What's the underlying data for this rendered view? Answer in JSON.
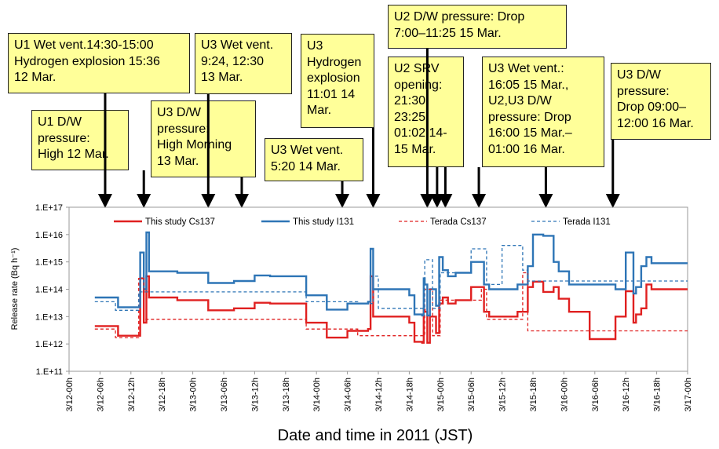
{
  "annotations": [
    {
      "text": "U1 Wet vent.14:30-15:00\nHydrogen explosion 15:36\n12 Mar."
    },
    {
      "text": "U1 D/W\npressure:\nHigh 12 Mar."
    },
    {
      "text": "U3 Wet vent.\n9:24, 12:30\n13 Mar."
    },
    {
      "text": "U3 D/W\npressure:\nHigh Morning\n13 Mar."
    },
    {
      "text": "U3 Wet vent.\n5:20 14 Mar."
    },
    {
      "text": "U3\nHydrogen\nexplosion\n11:01 14\nMar."
    },
    {
      "text": "U2 D/W pressure: Drop\n7:00–11:25 15 Mar."
    },
    {
      "text": "U2 SRV\nopening:\n21:30,\n23:25,\n01:02 14-\n15 Mar."
    },
    {
      "text": "U3 Wet vent.:\n16:05 15 Mar.,\nU2,U3 D/W\npressure: Drop\n16:00 15 Mar.–\n01:00 16 Mar."
    },
    {
      "text": "U3 D/W\npressure:\nDrop 09:00–\n12:00 16 Mar."
    }
  ],
  "chart_data": {
    "type": "line",
    "xlabel": "Date and time in 2011 (JST)",
    "ylabel": "Release rate (Bq h⁻¹)",
    "y_scale": "log",
    "ylim": [
      "1.E+11",
      "1.E+17"
    ],
    "yticks": [
      "1.E+11",
      "1.E+12",
      "1.E+13",
      "1.E+14",
      "1.E+15",
      "1.E+16",
      "1.E+17"
    ],
    "xlim_hours": [
      0,
      120
    ],
    "xticks": [
      "3/12-00h",
      "3/12-06h",
      "3/12-12h",
      "3/12-18h",
      "3/13-00h",
      "3/13-06h",
      "3/13-12h",
      "3/13-18h",
      "3/14-00h",
      "3/14-06h",
      "3/14-12h",
      "3/14-18h",
      "3/15-00h",
      "3/15-06h",
      "3/15-12h",
      "3/15-18h",
      "3/16-00h",
      "3/16-06h",
      "3/16-12h",
      "3/16-18h",
      "3/17-00h"
    ],
    "legend_position": "top",
    "arrow_times": [
      "3/12-07h",
      "3/12-14.5h",
      "3/13-03h",
      "3/13-09.5h",
      "3/14-05h",
      "3/14-11h",
      "3/14-21.5h",
      "3/14-23.4h",
      "3/15-01h",
      "3/15-07.5h",
      "3/15-20.5h",
      "3/16-09.5h"
    ],
    "series": [
      {
        "name": "This study Cs137",
        "color": "#e02020",
        "dash": false,
        "points": [
          [
            5,
            4500000000000.0
          ],
          [
            9.5,
            2000000000000.0
          ],
          [
            13.8,
            250000000000000.0
          ],
          [
            14.5,
            6000000000000.0
          ],
          [
            15,
            300000000000000.0
          ],
          [
            15.5,
            50000000000000.0
          ],
          [
            21,
            40000000000000.0
          ],
          [
            27,
            17000000000000.0
          ],
          [
            32,
            20000000000000.0
          ],
          [
            36,
            32000000000000.0
          ],
          [
            39,
            30000000000000.0
          ],
          [
            46,
            6000000000000.0
          ],
          [
            50,
            1700000000000.0
          ],
          [
            54,
            3000000000000.0
          ],
          [
            58,
            3500000000000.0
          ],
          [
            58.5,
            300000000000000.0
          ],
          [
            59,
            10000000000000.0
          ],
          [
            66,
            6000000000000.0
          ],
          [
            67,
            1200000000000.0
          ],
          [
            68.5,
            1100000000000.0
          ],
          [
            68.8,
            18000000000000.0
          ],
          [
            69,
            15000000000000.0
          ],
          [
            69.5,
            1100000000000.0
          ],
          [
            70,
            10000000000000.0
          ],
          [
            71.2,
            2500000000000.0
          ],
          [
            71.8,
            30000000000000.0
          ],
          [
            72.5,
            50000000000000.0
          ],
          [
            73.5,
            30000000000000.0
          ],
          [
            75,
            40000000000000.0
          ],
          [
            78,
            120000000000000.0
          ],
          [
            80.5,
            15000000000000.0
          ],
          [
            81.5,
            10000000000000.0
          ],
          [
            87,
            15000000000000.0
          ],
          [
            89,
            120000000000000.0
          ],
          [
            90,
            190000000000000.0
          ],
          [
            92,
            80000000000000.0
          ],
          [
            94,
            120000000000000.0
          ],
          [
            95,
            45000000000000.0
          ],
          [
            97,
            15000000000000.0
          ],
          [
            101,
            1500000000000.0
          ],
          [
            106,
            10000000000000.0
          ],
          [
            108,
            85000000000000.0
          ],
          [
            109.5,
            6000000000000.0
          ],
          [
            110,
            12000000000000.0
          ],
          [
            111,
            20000000000000.0
          ],
          [
            112,
            150000000000000.0
          ],
          [
            113,
            100000000000000.0
          ],
          [
            120,
            100000000000000.0
          ]
        ]
      },
      {
        "name": "This study I131",
        "color": "#2e75b6",
        "dash": false,
        "points": [
          [
            5,
            50000000000000.0
          ],
          [
            9.5,
            22000000000000.0
          ],
          [
            13.8,
            2200000000000000.0
          ],
          [
            14.5,
            100000000000000.0
          ],
          [
            15,
            1.2e+16
          ],
          [
            15.5,
            450000000000000.0
          ],
          [
            21,
            400000000000000.0
          ],
          [
            27,
            170000000000000.0
          ],
          [
            32,
            200000000000000.0
          ],
          [
            36,
            320000000000000.0
          ],
          [
            39,
            300000000000000.0
          ],
          [
            46,
            60000000000000.0
          ],
          [
            50,
            18000000000000.0
          ],
          [
            54,
            30000000000000.0
          ],
          [
            58,
            35000000000000.0
          ],
          [
            58.5,
            3000000000000000.0
          ],
          [
            59,
            100000000000000.0
          ],
          [
            66,
            60000000000000.0
          ],
          [
            67,
            12000000000000.0
          ],
          [
            68.5,
            11000000000000.0
          ],
          [
            68.8,
            250000000000000.0
          ],
          [
            69,
            150000000000000.0
          ],
          [
            69.5,
            11000000000000.0
          ],
          [
            70,
            100000000000000.0
          ],
          [
            71.2,
            25000000000000.0
          ],
          [
            71.8,
            1500000000000000.0
          ],
          [
            72.5,
            500000000000000.0
          ],
          [
            73.5,
            300000000000000.0
          ],
          [
            75,
            400000000000000.0
          ],
          [
            78,
            1000000000000000.0
          ],
          [
            80.5,
            150000000000000.0
          ],
          [
            81.5,
            100000000000000.0
          ],
          [
            87,
            150000000000000.0
          ],
          [
            89,
            700000000000000.0
          ],
          [
            90,
            1e+16
          ],
          [
            92,
            9000000000000000.0
          ],
          [
            94,
            1000000000000000.0
          ],
          [
            95,
            450000000000000.0
          ],
          [
            97,
            150000000000000.0
          ],
          [
            101,
            150000000000000.0
          ],
          [
            106,
            100000000000000.0
          ],
          [
            108,
            2200000000000000.0
          ],
          [
            109.5,
            70000000000000.0
          ],
          [
            110,
            120000000000000.0
          ],
          [
            111,
            700000000000000.0
          ],
          [
            112,
            1500000000000000.0
          ],
          [
            113,
            900000000000000.0
          ],
          [
            120,
            900000000000000.0
          ]
        ]
      },
      {
        "name": "Terada Cs137",
        "color": "#e02020",
        "dash": true,
        "points": [
          [
            5,
            3500000000000.0
          ],
          [
            9,
            1700000000000.0
          ],
          [
            13.5,
            250000000000000.0
          ],
          [
            14.5,
            8000000000000.0
          ],
          [
            21,
            8000000000000.0
          ],
          [
            33,
            8000000000000.0
          ],
          [
            44,
            8000000000000.0
          ],
          [
            46,
            3500000000000.0
          ],
          [
            56,
            2000000000000.0
          ],
          [
            59,
            2000000000000.0
          ],
          [
            66,
            2000000000000.0
          ],
          [
            68,
            2000000000000.0
          ],
          [
            69,
            100000000000000.0
          ],
          [
            70.5,
            2000000000000.0
          ],
          [
            72,
            40000000000000.0
          ],
          [
            80,
            100000000000000.0
          ],
          [
            81,
            8000000000000.0
          ],
          [
            84,
            8000000000000.0
          ],
          [
            88,
            400000000000000.0
          ],
          [
            89,
            3000000000000.0
          ],
          [
            100,
            3000000000000.0
          ],
          [
            120,
            3000000000000.0
          ]
        ]
      },
      {
        "name": "Terada I131",
        "color": "#2e75b6",
        "dash": true,
        "points": [
          [
            5,
            35000000000000.0
          ],
          [
            9,
            17000000000000.0
          ],
          [
            13.5,
            80000000000000.0
          ],
          [
            21,
            80000000000000.0
          ],
          [
            33,
            80000000000000.0
          ],
          [
            44,
            80000000000000.0
          ],
          [
            46,
            35000000000000.0
          ],
          [
            56,
            30000000000000.0
          ],
          [
            59,
            300000000000000.0
          ],
          [
            60,
            20000000000000.0
          ],
          [
            66,
            20000000000000.0
          ],
          [
            68,
            20000000000000.0
          ],
          [
            69,
            1200000000000000.0
          ],
          [
            70.5,
            20000000000000.0
          ],
          [
            72,
            400000000000000.0
          ],
          [
            78,
            3000000000000000.0
          ],
          [
            81,
            150000000000000.0
          ],
          [
            84,
            4000000000000000.0
          ],
          [
            88,
            500000000000000.0
          ],
          [
            89,
            200000000000000.0
          ],
          [
            100,
            200000000000000.0
          ],
          [
            120,
            200000000000000.0
          ]
        ]
      }
    ]
  }
}
